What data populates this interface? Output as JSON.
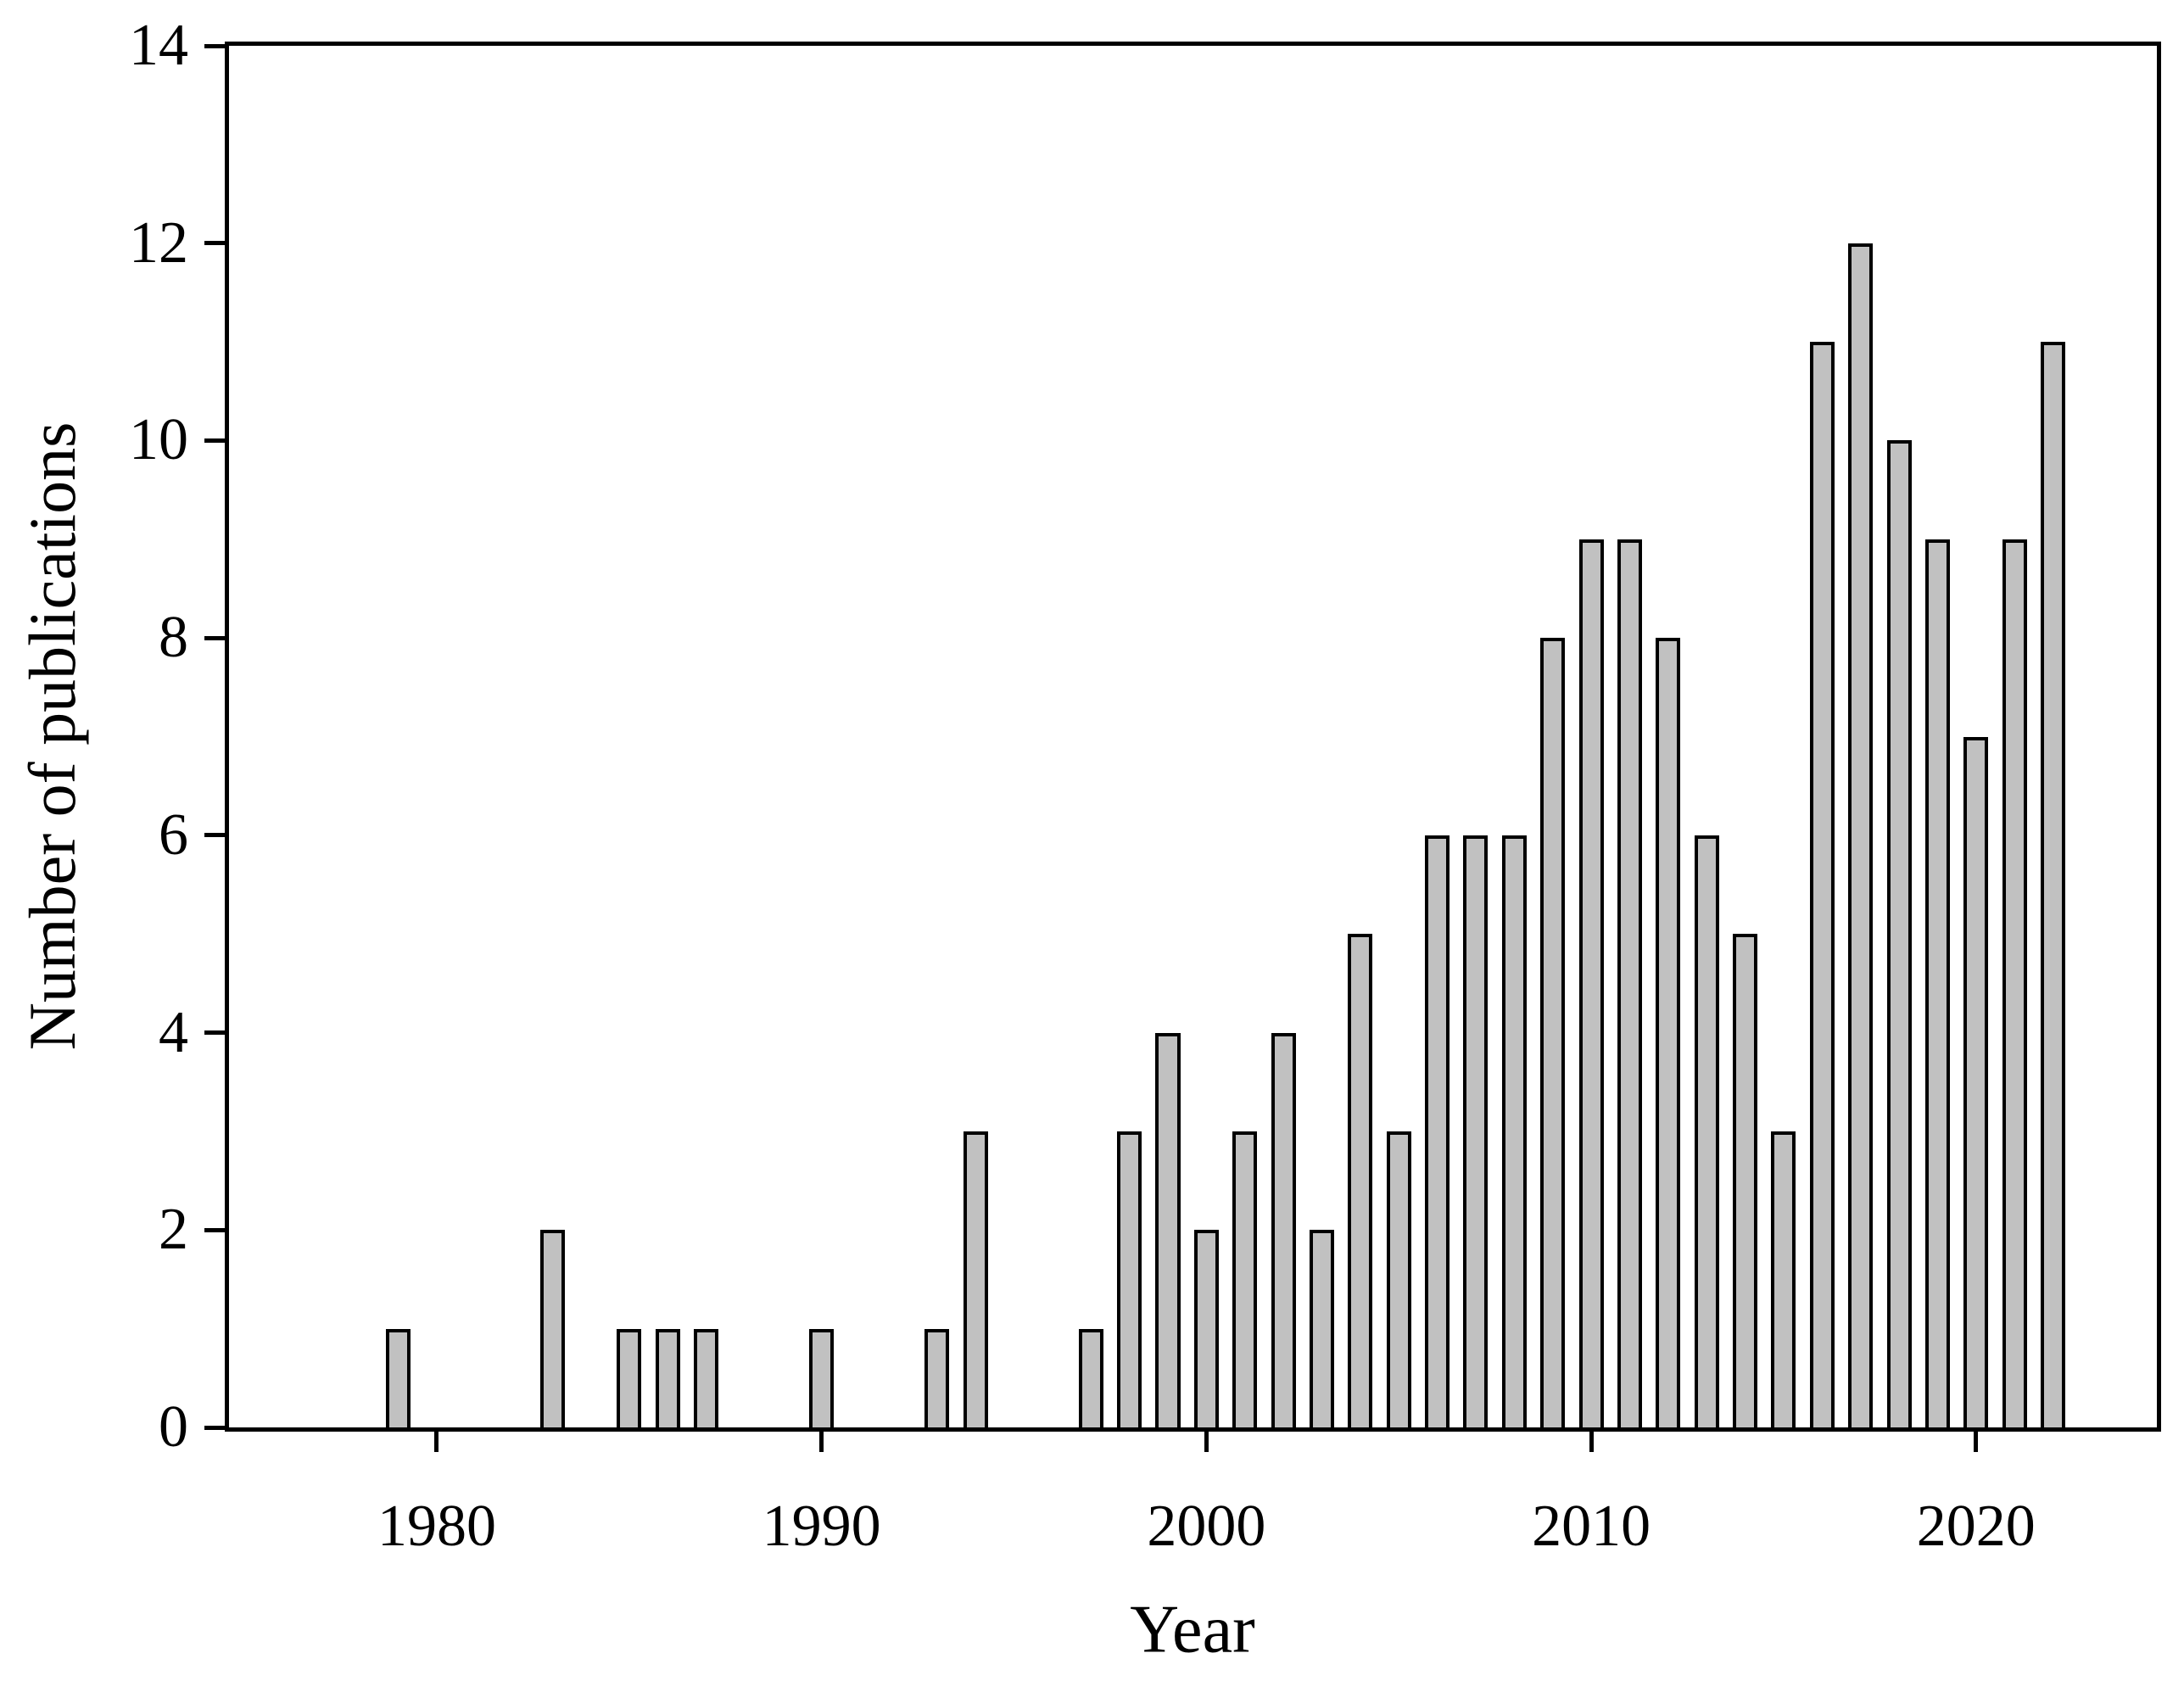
{
  "figure": {
    "background": "#ffffff",
    "text_color": "#000000",
    "axis_color": "#000000"
  },
  "chart_data": {
    "type": "bar",
    "title": "",
    "xlabel": "Year",
    "ylabel": "Number of publications",
    "xlim": [
      1974.6,
      2024.7
    ],
    "ylim": [
      0,
      14
    ],
    "x_ticks": [
      1980,
      1990,
      2000,
      2010,
      2020
    ],
    "y_ticks": [
      0,
      2,
      4,
      6,
      8,
      10,
      12,
      14
    ],
    "grid": false,
    "legend": false,
    "bar_color": "#c1c1c1",
    "bar_edge_color": "#000000",
    "bar_width_years": 0.64,
    "categories": [
      1979,
      1980,
      1981,
      1982,
      1983,
      1984,
      1985,
      1986,
      1987,
      1988,
      1989,
      1990,
      1991,
      1992,
      1993,
      1994,
      1995,
      1996,
      1997,
      1998,
      1999,
      2000,
      2001,
      2002,
      2003,
      2004,
      2005,
      2006,
      2007,
      2008,
      2009,
      2010,
      2011,
      2012,
      2013,
      2014,
      2015,
      2016,
      2017,
      2018,
      2019,
      2020,
      2021,
      2022
    ],
    "values": [
      1,
      0,
      0,
      0,
      2,
      0,
      1,
      1,
      1,
      0,
      0,
      1,
      0,
      0,
      1,
      3,
      0,
      0,
      1,
      3,
      4,
      2,
      3,
      4,
      2,
      5,
      3,
      6,
      6,
      6,
      8,
      9,
      9,
      8,
      6,
      5,
      3,
      11,
      12,
      10,
      9,
      7,
      9,
      11
    ]
  }
}
